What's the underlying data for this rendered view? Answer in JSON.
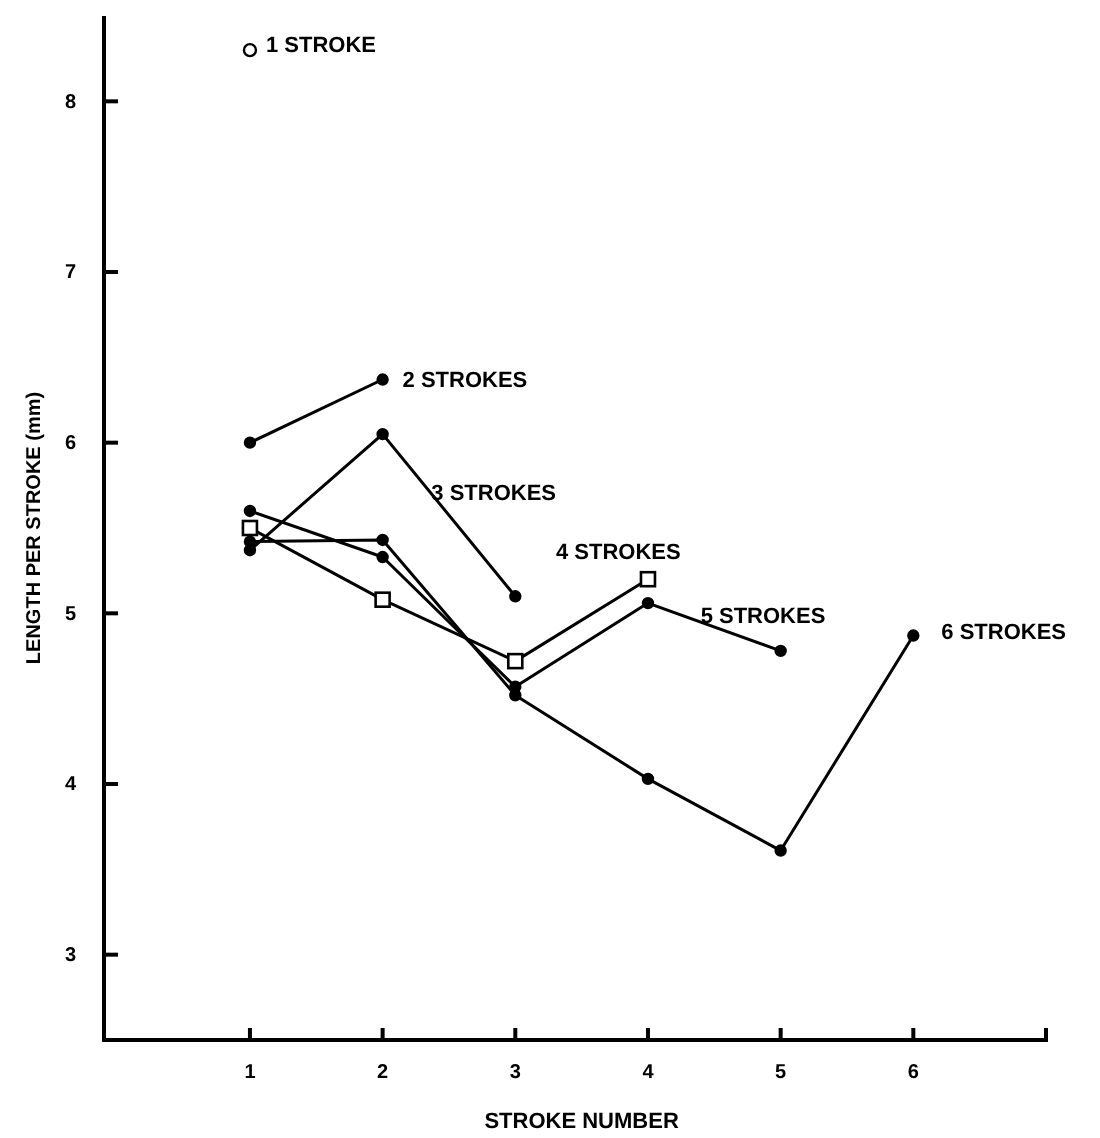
{
  "chart_data": {
    "type": "line",
    "xlabel": "STROKE NUMBER",
    "ylabel": "LENGTH PER STROKE (mm)",
    "xlim": [
      -0.1,
      7
    ],
    "ylim": [
      2.5,
      8.5
    ],
    "xticks": [
      1,
      2,
      3,
      4,
      5,
      6
    ],
    "yticks": [
      3,
      4,
      5,
      6,
      7,
      8
    ],
    "grid": false,
    "series": [
      {
        "name": "1 STROKE",
        "color": "#000000",
        "marker": "circle",
        "x": [
          1
        ],
        "values": [
          8.3
        ]
      },
      {
        "name": "2 STROKES",
        "color": "#000000",
        "marker": "circle",
        "x": [
          1,
          2
        ],
        "values": [
          6.0,
          6.37
        ]
      },
      {
        "name": "3 STROKES",
        "color": "#000000",
        "marker": "circle",
        "x": [
          1,
          2,
          3
        ],
        "values": [
          5.37,
          6.05,
          5.1
        ]
      },
      {
        "name": "4 STROKES",
        "color": "#000000",
        "marker": "square",
        "x": [
          1,
          2,
          3,
          4
        ],
        "values": [
          5.5,
          5.08,
          4.72,
          5.2
        ]
      },
      {
        "name": "5 STROKES",
        "color": "#000000",
        "marker": "circle",
        "x": [
          1,
          2,
          3,
          4,
          5
        ],
        "values": [
          5.6,
          5.33,
          4.57,
          5.06,
          4.78
        ]
      },
      {
        "name": "6 STROKES",
        "color": "#000000",
        "marker": "circle",
        "x": [
          1,
          2,
          3,
          4,
          5,
          6
        ],
        "values": [
          5.42,
          5.43,
          4.52,
          4.03,
          3.61,
          4.87
        ]
      }
    ]
  }
}
